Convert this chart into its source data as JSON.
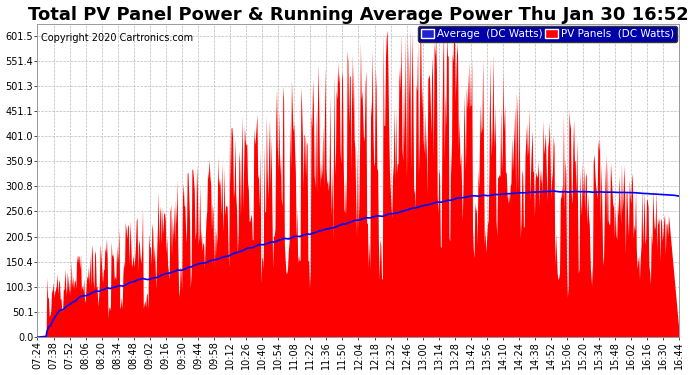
{
  "title": "Total PV Panel Power & Running Average Power Thu Jan 30 16:52",
  "copyright": "Copyright 2020 Cartronics.com",
  "legend_avg": "Average  (DC Watts)",
  "legend_pv": "PV Panels  (DC Watts)",
  "bar_color": "#ff0000",
  "avg_color": "#0000ff",
  "background_color": "#ffffff",
  "grid_color": "#bbbbbb",
  "yticks": [
    0.0,
    50.1,
    100.3,
    150.4,
    200.5,
    250.6,
    300.8,
    350.9,
    401.0,
    451.1,
    501.3,
    551.4,
    601.5
  ],
  "xtick_labels": [
    "07:24",
    "07:38",
    "07:52",
    "08:06",
    "08:20",
    "08:34",
    "08:48",
    "09:02",
    "09:16",
    "09:30",
    "09:44",
    "09:58",
    "10:12",
    "10:26",
    "10:40",
    "10:54",
    "11:08",
    "11:22",
    "11:36",
    "11:50",
    "12:04",
    "12:18",
    "12:32",
    "12:46",
    "13:00",
    "13:14",
    "13:28",
    "13:42",
    "13:56",
    "14:10",
    "14:24",
    "14:38",
    "14:52",
    "15:06",
    "15:20",
    "15:34",
    "15:48",
    "16:02",
    "16:16",
    "16:30",
    "16:44"
  ],
  "title_fontsize": 13,
  "copyright_fontsize": 7,
  "tick_fontsize": 7,
  "legend_fontsize": 7.5
}
